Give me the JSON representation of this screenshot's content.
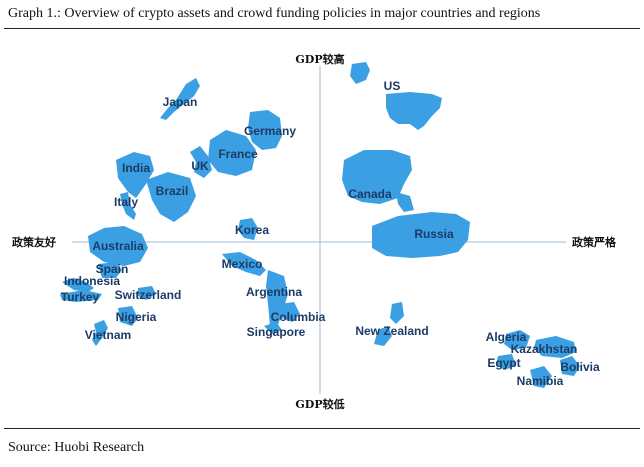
{
  "caption": "Graph  1.: Overview of crypto assets and crowd funding policies in major countries and regions",
  "source": "Source: Huobi Research",
  "axes": {
    "top": "GDP较高",
    "bottom": "GDP较低",
    "left": "政策友好",
    "right": "政策严格"
  },
  "colors": {
    "country_fill": "#3b9fe3",
    "label_text": "#1c3b66",
    "axis": "#9fb9d6"
  },
  "countries": [
    "US",
    "Japan",
    "Germany",
    "France",
    "UK",
    "India",
    "Brazil",
    "Canada",
    "Italy",
    "Korea",
    "Russia",
    "Australia",
    "Spain",
    "Indonesia",
    "Mexico",
    "Turkey",
    "Switzerland",
    "Argentina",
    "Nigeria",
    "Columbia",
    "Singapore",
    "New Zealand",
    "Vietnam",
    "Algeria",
    "Kazakhstan",
    "Egypt",
    "Bolivia",
    "Namibia"
  ]
}
